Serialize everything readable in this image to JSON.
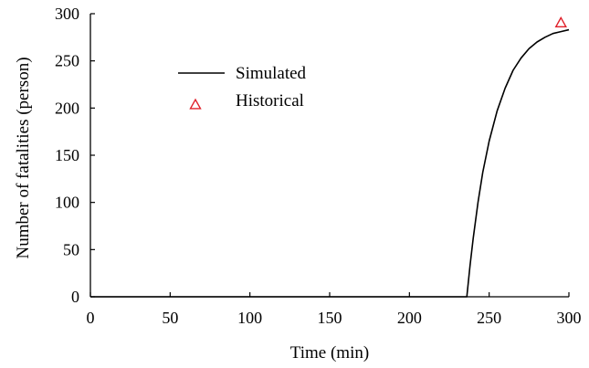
{
  "chart_data": {
    "type": "line",
    "title": "",
    "xlabel": "Time (min)",
    "ylabel": "Number of fatalities (person)",
    "xlim": [
      0,
      300
    ],
    "ylim": [
      0,
      300
    ],
    "x_ticks": [
      0,
      50,
      100,
      150,
      200,
      250,
      300
    ],
    "y_ticks": [
      0,
      50,
      100,
      150,
      200,
      250,
      300
    ],
    "grid": false,
    "legend_position": "upper-left inside plot",
    "series": [
      {
        "name": "Simulated",
        "kind": "line",
        "color": "#000000",
        "x": [
          0,
          100,
          200,
          236,
          238,
          240,
          243,
          246,
          250,
          255,
          260,
          265,
          270,
          275,
          280,
          285,
          290,
          295,
          300
        ],
        "y": [
          0,
          0,
          0,
          0,
          33,
          62,
          100,
          132,
          165,
          197,
          221,
          240,
          253,
          263,
          270,
          275,
          279,
          281,
          283
        ]
      },
      {
        "name": "Historical",
        "kind": "scatter",
        "marker": "triangle-open",
        "color": "#e0202a",
        "x": [
          295
        ],
        "y": [
          290
        ]
      }
    ]
  }
}
